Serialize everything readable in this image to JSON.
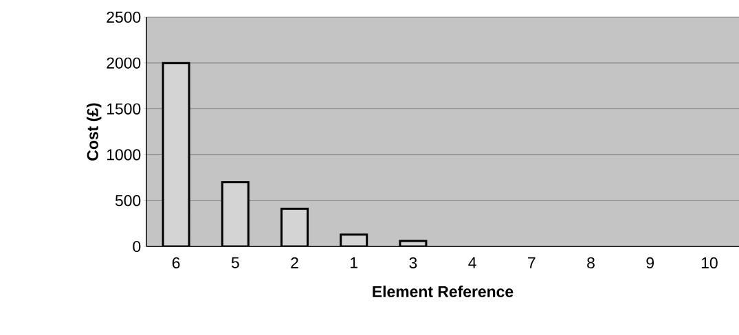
{
  "chart_data": {
    "type": "bar",
    "xlabel": "Element Reference",
    "ylabel": "Cost (£)",
    "categories": [
      "6",
      "5",
      "2",
      "1",
      "3",
      "4",
      "7",
      "8",
      "9",
      "10"
    ],
    "values": [
      2000,
      700,
      410,
      130,
      60,
      0,
      0,
      0,
      0,
      0
    ],
    "color": "#d4d4d4",
    "ylim": [
      0,
      2500
    ],
    "yticks": [
      0,
      500,
      1000,
      1500,
      2000,
      2500
    ],
    "grid": "y"
  }
}
